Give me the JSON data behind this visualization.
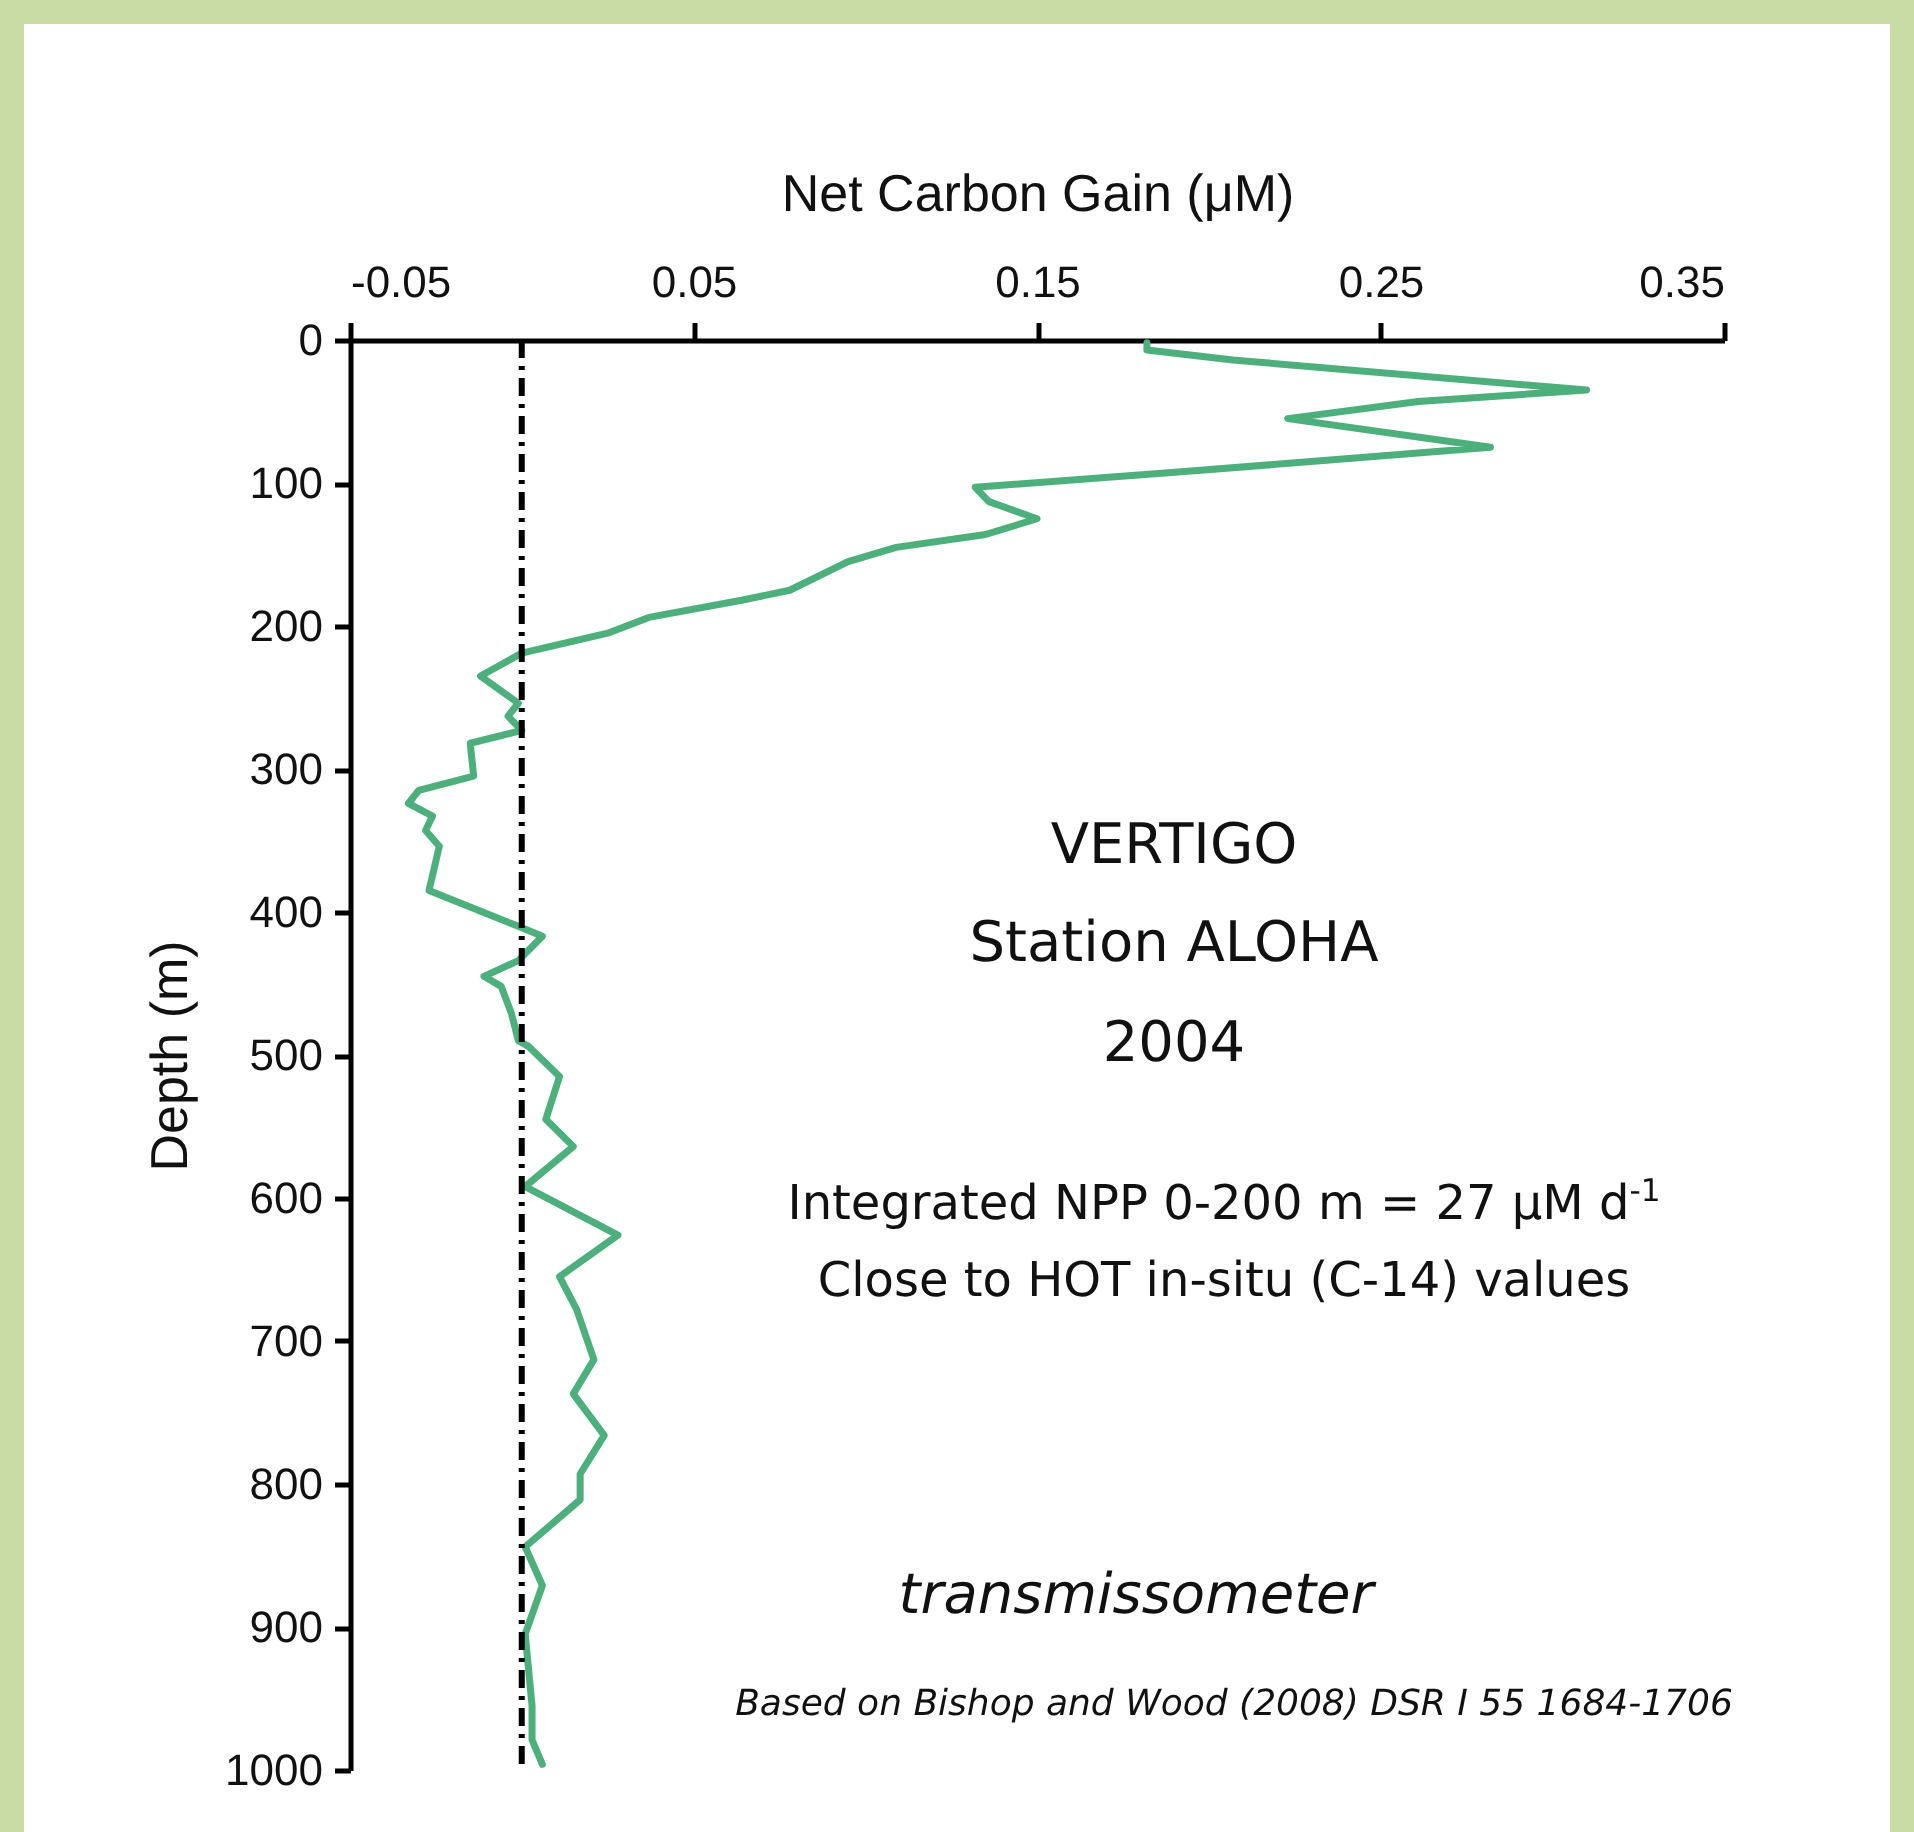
{
  "chart_data": {
    "type": "line",
    "xlabel": "Net Carbon Gain (μM)",
    "ylabel": "Depth (m)",
    "xlim": [
      -0.05,
      0.35
    ],
    "xticks": [
      -0.05,
      0.05,
      0.15,
      0.25,
      0.35
    ],
    "ylim": [
      1000,
      0
    ],
    "yticks": [
      0,
      100,
      200,
      300,
      400,
      500,
      600,
      700,
      800,
      900,
      1000
    ],
    "grid": false,
    "marker": "none",
    "line_style": "solid",
    "series": [
      {
        "color": "#4daf7c",
        "x": [
          0.182,
          0.182,
          0.207,
          0.31,
          0.261,
          0.223,
          0.282,
          0.193,
          0.132,
          0.136,
          0.15,
          0.135,
          0.109,
          0.095,
          0.078,
          0.064,
          0.037,
          0.025,
          0.0,
          -0.012,
          -0.001,
          -0.004,
          0.0,
          -0.015,
          -0.014,
          -0.03,
          -0.033,
          -0.026,
          -0.028,
          -0.024,
          -0.027,
          -0.001,
          0.006,
          -0.001,
          -0.011,
          -0.006,
          -0.003,
          -0.001,
          0.002,
          0.011,
          0.007,
          0.015,
          0.001,
          0.028,
          0.011,
          0.016,
          0.021,
          0.015,
          0.024,
          0.017,
          0.017,
          0.001,
          0.006,
          0.001,
          0.003,
          0.003,
          0.006
        ],
        "values": [
          2,
          7,
          14,
          35,
          43,
          55,
          75,
          92,
          103,
          113,
          125,
          136,
          145,
          155,
          175,
          182,
          194,
          205,
          219,
          235,
          254,
          263,
          273,
          282,
          305,
          315,
          324,
          333,
          343,
          354,
          385,
          410,
          417,
          434,
          445,
          452,
          471,
          490,
          494,
          515,
          545,
          564,
          592,
          626,
          655,
          678,
          713,
          737,
          766,
          793,
          811,
          844,
          871,
          905,
          955,
          979,
          996
        ]
      }
    ],
    "ref_lines": [
      {
        "axis": "x",
        "value": 0,
        "line_style": "dashed",
        "color": "#000000"
      }
    ],
    "annotations": [
      "VERTIGO",
      "Station ALOHA",
      "2004",
      "Integrated  NPP 0-200 m = 27 µM d$^{-1}$",
      "Close to HOT in-situ (C-14) values",
      "transmissometer",
      "Based on Bishop and Wood (2008) DSR I 55 1684-1706"
    ]
  }
}
